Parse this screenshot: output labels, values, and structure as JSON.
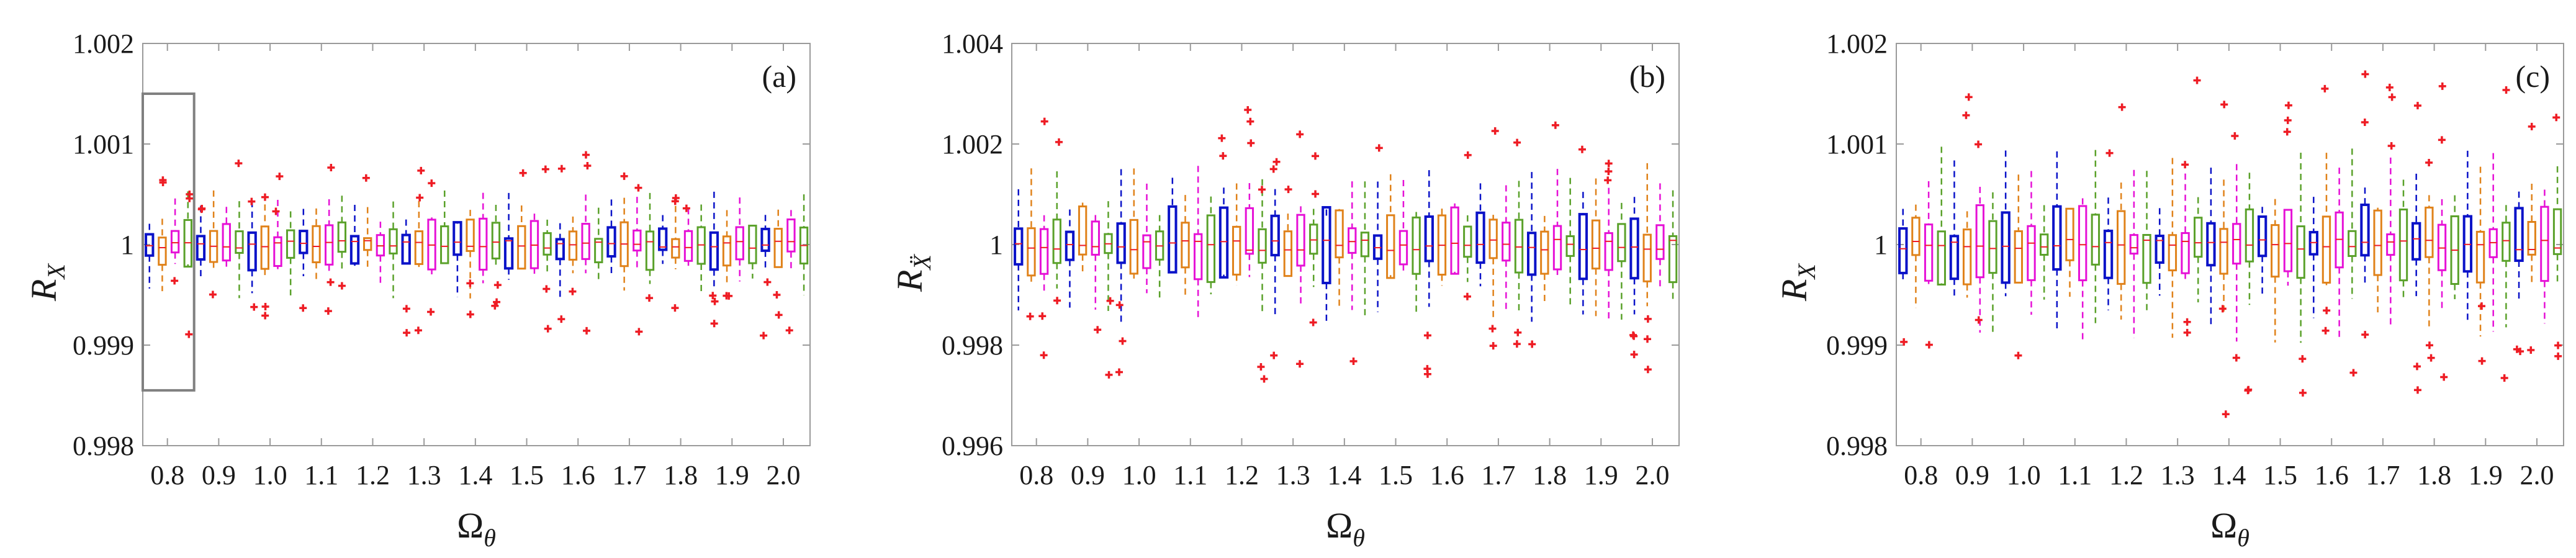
{
  "figure": {
    "panel_count": 3
  },
  "colors": {
    "blue": "#0a12c8",
    "orange": "#e0821a",
    "magenta": "#e610d6",
    "green": "#5aa12a",
    "outlier": "#ee1c24",
    "box_frame": "#808080",
    "axis": "#9a9a9a"
  },
  "chart_data": [
    {
      "type": "box",
      "panel_label": "(a)",
      "ylabel_main": "R",
      "ylabel_sub": "X",
      "xlabel_main": "Ω",
      "xlabel_sub": "θ",
      "ylim": [
        0.998,
        1.002
      ],
      "yticks": [
        0.998,
        0.999,
        1,
        1.001,
        1.002
      ],
      "ytick_labels": [
        "0.998",
        "0.999",
        "1",
        "1.001",
        "1.002"
      ],
      "xlim": [
        0.752,
        2.052
      ],
      "xticks": [
        0.8,
        0.9,
        1.0,
        1.1,
        1.2,
        1.3,
        1.4,
        1.5,
        1.6,
        1.7,
        1.8,
        1.9,
        2.0
      ],
      "xtick_labels": [
        "0.8",
        "0.9",
        "1.0",
        "1.1",
        "1.2",
        "1.3",
        "1.4",
        "1.5",
        "1.6",
        "1.7",
        "1.8",
        "1.9",
        "2.0"
      ],
      "box_x_range": [
        0.765,
        2.04
      ],
      "box_count": 52,
      "box_color_cycle": [
        "blue",
        "orange",
        "magenta",
        "green"
      ],
      "highlight_rect": {
        "x0": 0.752,
        "x1": 0.852,
        "y0": 0.99855,
        "y1": 1.0015
      },
      "seed": 11,
      "q_spread": 0.00013,
      "w_spread": 0.0003,
      "outlier_spread": 0.0006,
      "outlier_prob": 0.55
    },
    {
      "type": "box",
      "panel_label": "(b)",
      "ylabel_main": "R",
      "ylabel_sub": "Ẍ",
      "xlabel_main": "Ω",
      "xlabel_sub": "θ",
      "ylim": [
        0.996,
        1.004
      ],
      "yticks": [
        0.996,
        0.998,
        1,
        1.002,
        1.004
      ],
      "ytick_labels": [
        "0.996",
        "0.998",
        "1",
        "1.002",
        "1.004"
      ],
      "xlim": [
        0.752,
        2.052
      ],
      "xticks": [
        0.8,
        0.9,
        1.0,
        1.1,
        1.2,
        1.3,
        1.4,
        1.5,
        1.6,
        1.7,
        1.8,
        1.9,
        2.0
      ],
      "xtick_labels": [
        "0.8",
        "0.9",
        "1.0",
        "1.1",
        "1.2",
        "1.3",
        "1.4",
        "1.5",
        "1.6",
        "1.7",
        "1.8",
        "1.9",
        "2.0"
      ],
      "box_x_range": [
        0.765,
        2.04
      ],
      "box_count": 52,
      "box_color_cycle": [
        "blue",
        "orange",
        "magenta",
        "green"
      ],
      "seed": 23,
      "q_spread": 0.0004,
      "w_spread": 0.0009,
      "outlier_spread": 0.0017,
      "outlier_prob": 0.5
    },
    {
      "type": "box",
      "panel_label": "(c)",
      "ylabel_main": "R",
      "ylabel_sub": "X",
      "xlabel_main": "Ω",
      "xlabel_sub": "θ",
      "ylim": [
        0.998,
        1.002
      ],
      "yticks": [
        0.998,
        0.999,
        1,
        1.001,
        1.002
      ],
      "ytick_labels": [
        "0.998",
        "0.999",
        "1",
        "1.001",
        "1.002"
      ],
      "xlim": [
        0.752,
        2.052
      ],
      "xticks": [
        0.8,
        0.9,
        1.0,
        1.1,
        1.2,
        1.3,
        1.4,
        1.5,
        1.6,
        1.7,
        1.8,
        1.9,
        2.0
      ],
      "xtick_labels": [
        "0.8",
        "0.9",
        "1.0",
        "1.1",
        "1.2",
        "1.3",
        "1.4",
        "1.5",
        "1.6",
        "1.7",
        "1.8",
        "1.9",
        "2.0"
      ],
      "box_x_range": [
        0.765,
        2.04
      ],
      "box_count": 52,
      "box_color_cycle": [
        "blue",
        "orange",
        "magenta",
        "green"
      ],
      "seed": 37,
      "q_spread": 0.0002,
      "w_spread": 0.00055,
      "outlier_spread": 0.0011,
      "outlier_prob": 0.45
    }
  ]
}
